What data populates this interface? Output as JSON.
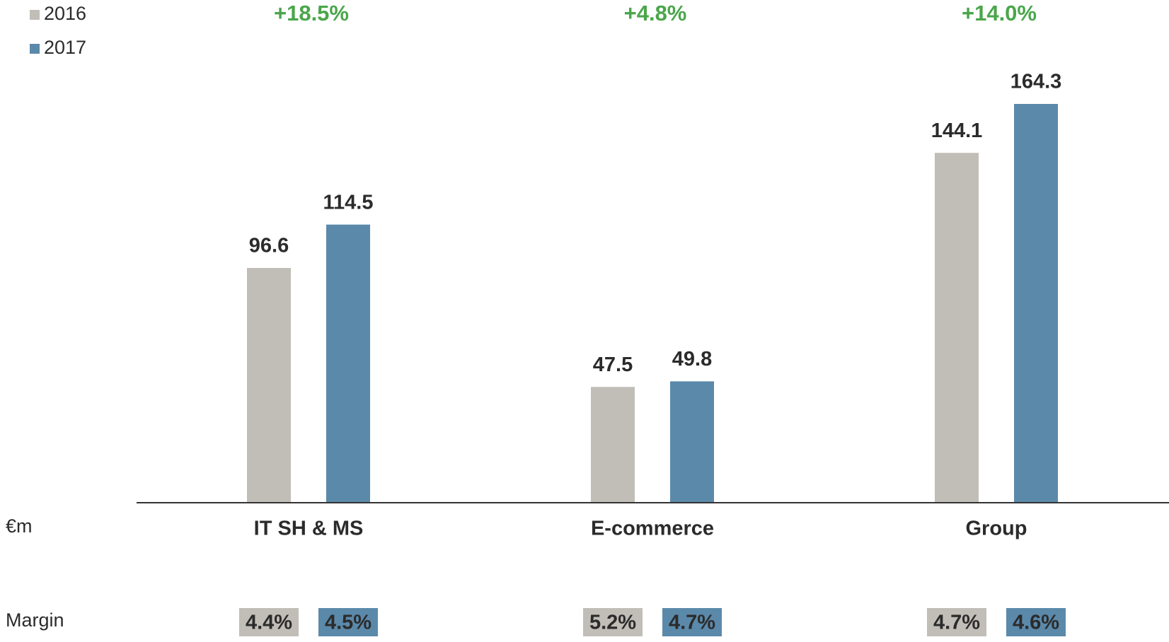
{
  "chart_data": {
    "type": "bar",
    "categories": [
      "IT SH & MS",
      "E-commerce",
      "Group"
    ],
    "series": [
      {
        "name": "2016",
        "color": "#c1bdb7",
        "values": [
          96.6,
          47.5,
          144.1
        ],
        "margins": [
          4.4,
          5.2,
          4.7
        ],
        "margin_labels": [
          "4.4%",
          "5.2%",
          "4.7%"
        ]
      },
      {
        "name": "2017",
        "color": "#5b89aa",
        "values": [
          114.5,
          49.8,
          164.3
        ],
        "margins": [
          4.5,
          4.7,
          4.6
        ],
        "margin_labels": [
          "4.5%",
          "4.7%",
          "4.6%"
        ]
      }
    ],
    "growth": [
      18.5,
      4.8,
      14.0
    ],
    "growth_labels": [
      "+18.5%",
      "+4.8%",
      "+14.0%"
    ],
    "growth_color": "#4aa64a",
    "unit_label": "€m",
    "margin_title": "Margin",
    "legend": "top-left"
  }
}
